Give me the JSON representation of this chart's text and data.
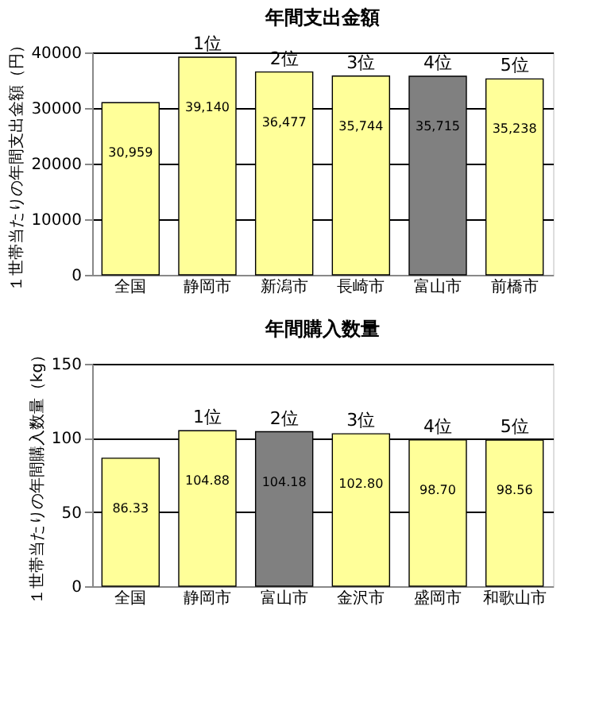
{
  "chart_data": [
    {
      "type": "bar",
      "title": "年間支出金額",
      "ylabel": "１世帯当たりの年間支出金額（円）",
      "categories": [
        "全国",
        "静岡市",
        "新潟市",
        "長崎市",
        "富山市",
        "前橋市"
      ],
      "values": [
        30959,
        39140,
        36477,
        35744,
        35715,
        35238
      ],
      "colors": [
        "#ffff99",
        "#ffff99",
        "#ffff99",
        "#ffff99",
        "#808080",
        "#ffff99"
      ],
      "value_labels": [
        "30,959",
        "39,140",
        "36,477",
        "35,744",
        "35,715",
        "35,238"
      ],
      "ylim": [
        0,
        40000
      ],
      "yticks": [
        0,
        10000,
        20000,
        30000,
        40000
      ],
      "grid": "y",
      "annotations": [
        {
          "text": "1位",
          "x": "静岡市",
          "y": 39140
        },
        {
          "text": "2位",
          "x": "新潟市",
          "y": 36477
        },
        {
          "text": "3位",
          "x": "長崎市",
          "y": 35744
        },
        {
          "text": "4位",
          "x": "富山市",
          "y": 35715
        },
        {
          "text": "5位",
          "x": "前橋市",
          "y": 35238
        }
      ]
    },
    {
      "type": "bar",
      "title": "年間購入数量",
      "ylabel": "１世帯当たりの年間購入数量（kg）",
      "categories": [
        "全国",
        "静岡市",
        "富山市",
        "金沢市",
        "盛岡市",
        "和歌山市"
      ],
      "values": [
        86.33,
        104.88,
        104.18,
        102.8,
        98.7,
        98.56
      ],
      "colors": [
        "#ffff99",
        "#ffff99",
        "#808080",
        "#ffff99",
        "#ffff99",
        "#ffff99"
      ],
      "value_labels": [
        "86.33",
        "104.88",
        "104.18",
        "102.80",
        "98.70",
        "98.56"
      ],
      "ylim": [
        0,
        150
      ],
      "yticks": [
        0,
        50,
        100,
        150
      ],
      "grid": "y",
      "annotations": [
        {
          "text": "1位",
          "x": "静岡市",
          "y": 104.88
        },
        {
          "text": "2位",
          "x": "富山市",
          "y": 104.18
        },
        {
          "text": "3位",
          "x": "金沢市",
          "y": 102.8
        },
        {
          "text": "4位",
          "x": "盛岡市",
          "y": 98.7
        },
        {
          "text": "5位",
          "x": "和歌山市",
          "y": 98.56
        }
      ]
    }
  ]
}
